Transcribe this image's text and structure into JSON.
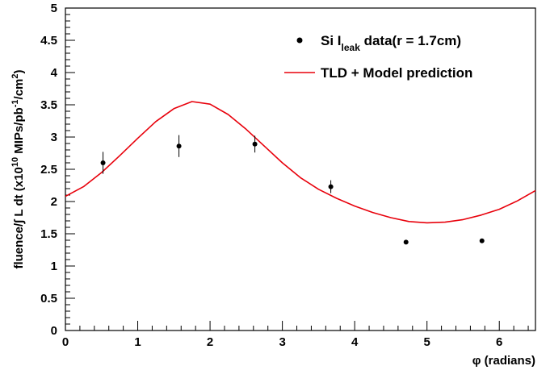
{
  "chart_data": {
    "type": "scatter",
    "xlim": [
      0,
      6.5
    ],
    "ylim": [
      0,
      5
    ],
    "x_ticks": [
      "0",
      "1",
      "2",
      "3",
      "4",
      "5",
      "6"
    ],
    "y_ticks": [
      "0",
      "0.5",
      "1",
      "1.5",
      "2",
      "2.5",
      "3",
      "3.5",
      "4",
      "4.5",
      "5"
    ],
    "xlabel": "φ (radians)",
    "ylabel": {
      "text": "fluence/∫ L dt   (x10",
      "sup1": "10",
      "mid": " MIPs/pb",
      "sup2": "-1",
      "mid2": "/cm",
      "sup3": "2",
      "end": ")"
    },
    "grid": false,
    "legend_position": "top-right",
    "colors": {
      "data": "#000000",
      "model": "#e8000b"
    },
    "series": [
      {
        "name": "Si I leak data(r = 1.7cm)",
        "legend": {
          "prefix": "Si I",
          "sub": "leak",
          "suffix": " data(r = 1.7cm)"
        },
        "kind": "points",
        "x": [
          0.52,
          1.57,
          2.62,
          3.67,
          4.71,
          5.76
        ],
        "y": [
          2.6,
          2.86,
          2.89,
          2.23,
          1.37,
          1.39
        ],
        "yerr": [
          0.17,
          0.17,
          0.13,
          0.1,
          0.0,
          0.0
        ]
      },
      {
        "name": "TLD + Model prediction",
        "legend": {
          "prefix": "TLD + Model prediction",
          "sub": "",
          "suffix": ""
        },
        "kind": "line",
        "x": [
          0,
          0.25,
          0.5,
          0.75,
          1.0,
          1.25,
          1.5,
          1.75,
          2.0,
          2.25,
          2.5,
          2.75,
          3.0,
          3.25,
          3.5,
          3.75,
          4.0,
          4.25,
          4.5,
          4.75,
          5.0,
          5.25,
          5.5,
          5.75,
          6.0,
          6.25,
          6.5
        ],
        "y": [
          2.08,
          2.23,
          2.45,
          2.71,
          2.98,
          3.24,
          3.44,
          3.55,
          3.51,
          3.35,
          3.12,
          2.86,
          2.6,
          2.37,
          2.19,
          2.05,
          1.93,
          1.83,
          1.75,
          1.69,
          1.67,
          1.68,
          1.72,
          1.79,
          1.88,
          2.01,
          2.17
        ]
      }
    ]
  }
}
